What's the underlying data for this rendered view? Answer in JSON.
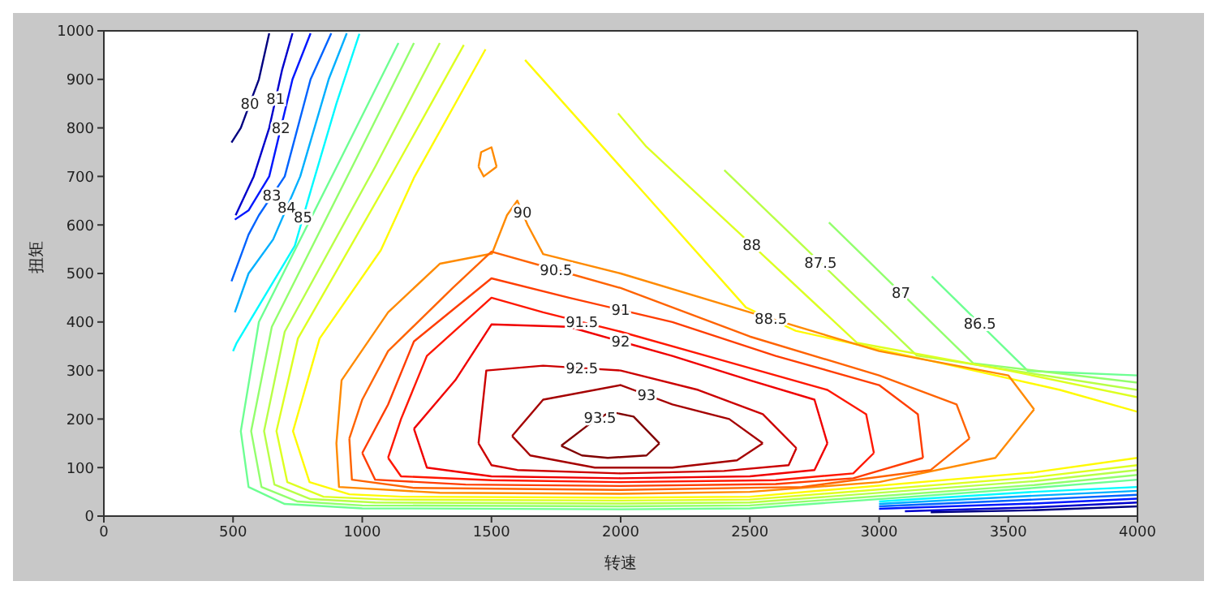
{
  "chart_data": {
    "type": "line",
    "xlabel": "转速",
    "ylabel": "扭矩",
    "xlim": [
      0,
      4000
    ],
    "xticks": [
      0,
      500,
      1000,
      1500,
      2000,
      2500,
      3000,
      3500,
      4000
    ],
    "ylim": [
      0,
      1000
    ],
    "yticks": [
      0,
      100,
      200,
      300,
      400,
      500,
      600,
      700,
      800,
      900,
      1000
    ],
    "grid": false,
    "legend": false,
    "series": [
      {
        "name": "80",
        "color": "#000080",
        "x": [
          640,
          600,
          530,
          494,
          null,
          3200,
          3600,
          4000
        ],
        "values": [
          995,
          900,
          800,
          770,
          null,
          8,
          12,
          20
        ]
      },
      {
        "name": "81",
        "color": "#0000cc",
        "x": [
          730,
          690,
          640,
          580,
          510,
          null,
          3100,
          3600,
          4000
        ],
        "values": [
          995,
          920,
          800,
          700,
          620,
          null,
          10,
          18,
          28
        ]
      },
      {
        "name": "82",
        "color": "#0017ff",
        "x": [
          800,
          730,
          640,
          560,
          507,
          null,
          3000,
          3600,
          4000
        ],
        "values": [
          995,
          900,
          700,
          630,
          611,
          null,
          15,
          26,
          36
        ]
      },
      {
        "name": "83",
        "color": "#0063ff",
        "x": [
          880,
          800,
          700,
          600,
          560,
          494,
          null,
          3000,
          3600,
          4000
        ],
        "values": [
          995,
          900,
          700,
          620,
          580,
          484,
          null,
          20,
          34,
          44
        ]
      },
      {
        "name": "84",
        "color": "#00afff",
        "x": [
          940,
          870,
          760,
          655,
          560,
          507,
          null,
          3000,
          3600,
          4000
        ],
        "values": [
          995,
          900,
          700,
          570,
          500,
          420,
          null,
          25,
          42,
          52
        ]
      },
      {
        "name": "85",
        "color": "#00faff",
        "x": [
          989,
          900,
          803,
          739,
          514,
          500,
          null,
          3000,
          3600,
          4000
        ],
        "values": [
          994,
          850,
          675,
          557,
          357,
          340,
          null,
          30,
          50,
          60
        ]
      },
      {
        "name": "86.5",
        "color": "#6dff92",
        "x": [
          3204,
          3576,
          4000,
          null,
          1140,
          920,
          600,
          530,
          560,
          700,
          1000,
          2000,
          2500,
          3600,
          4000
        ],
        "values": [
          494,
          299,
          290,
          null,
          975,
          740,
          400,
          175,
          60,
          25,
          16,
          14,
          16,
          58,
          75
        ]
      },
      {
        "name": "87",
        "color": "#92ff6d",
        "x": [
          2806,
          3364,
          4000,
          null,
          1200,
          980,
          650,
          570,
          610,
          750,
          1000,
          2000,
          2500,
          3600,
          4000
        ],
        "values": [
          605,
          315,
          275,
          null,
          975,
          740,
          390,
          175,
          60,
          30,
          22,
          20,
          22,
          64,
          85
        ]
      },
      {
        "name": "87.5",
        "color": "#b8ff47",
        "x": [
          2401,
          3146,
          4000,
          null,
          1300,
          1050,
          700,
          620,
          660,
          800,
          1050,
          2000,
          2500,
          3600,
          4000
        ],
        "values": [
          713,
          331,
          260,
          null,
          975,
          720,
          380,
          175,
          65,
          35,
          28,
          26,
          28,
          72,
          95
        ]
      },
      {
        "name": "88",
        "color": "#ddff21",
        "x": [
          1990,
          2100,
          2915,
          3500,
          4000,
          null,
          1393,
          1117,
          751,
          668,
          710,
          850,
          1091,
          2000,
          2500,
          3600,
          4000
        ],
        "values": [
          830,
          761,
          357,
          300,
          245,
          null,
          971,
          707,
          366,
          175,
          70,
          40,
          34,
          32,
          34,
          80,
          105
        ]
      },
      {
        "name": "88.5",
        "color": "#fffa00",
        "x": [
          1630,
          2100,
          2485,
          2677,
          3200,
          3700,
          4000,
          null,
          1477,
          1200,
          1072,
          835,
          732,
          796,
          950,
          1156,
          2000,
          2500,
          3600,
          4000
        ],
        "values": [
          940,
          660,
          430,
          382,
          320,
          260,
          215,
          null,
          962,
          697,
          548,
          366,
          175,
          70,
          45,
          40,
          38,
          40,
          90,
          120
        ]
      },
      {
        "name": "90",
        "color": "#ff8a00",
        "x": [
          900,
          920,
          1100,
          1300,
          1502,
          1560,
          1600,
          1640,
          1700,
          2000,
          2500,
          3000,
          3500,
          3600,
          null,
          900,
          910,
          1300,
          2000,
          2500,
          3000,
          3450,
          3600,
          null,
          1450,
          1460,
          1500,
          1520,
          null,
          1450,
          1470,
          1520
        ],
        "values": [
          150,
          280,
          420,
          520,
          541,
          620,
          650,
          600,
          540,
          500,
          420,
          340,
          290,
          220,
          null,
          150,
          60,
          48,
          46,
          50,
          70,
          120,
          220,
          null,
          720,
          750,
          760,
          720,
          null,
          720,
          700,
          720
        ]
      },
      {
        "name": "90.5",
        "color": "#ff6300",
        "x": [
          950,
          1000,
          1100,
          1350,
          1500,
          2000,
          2500,
          3000,
          3300,
          3350,
          null,
          950,
          960,
          1200,
          2000,
          2700,
          3200,
          3350
        ],
        "values": [
          160,
          240,
          340,
          470,
          545,
          470,
          370,
          290,
          230,
          160,
          null,
          160,
          75,
          58,
          54,
          60,
          95,
          160
        ]
      },
      {
        "name": "91",
        "color": "#ff3d00",
        "x": [
          1000,
          1100,
          1200,
          1500,
          1800,
          2200,
          2600,
          3000,
          3150,
          3170,
          null,
          1000,
          1050,
          1400,
          2000,
          2600,
          2900,
          3170
        ],
        "values": [
          130,
          230,
          360,
          490,
          450,
          400,
          330,
          270,
          210,
          120,
          null,
          130,
          75,
          65,
          62,
          66,
          78,
          120
        ]
      },
      {
        "name": "91.5",
        "color": "#ff1700",
        "x": [
          1100,
          1150,
          1250,
          1500,
          1700,
          2000,
          2400,
          2800,
          2950,
          2980,
          null,
          1100,
          1150,
          1500,
          2000,
          2600,
          2900,
          2980
        ],
        "values": [
          120,
          200,
          330,
          450,
          420,
          380,
          320,
          260,
          210,
          130,
          null,
          120,
          82,
          74,
          70,
          74,
          88,
          130
        ]
      },
      {
        "name": "92",
        "color": "#f00000",
        "x": [
          1200,
          1360,
          1500,
          1800,
          2200,
          2500,
          2750,
          2800,
          null,
          1200,
          1250,
          1500,
          2000,
          2500,
          2750,
          2800
        ],
        "values": [
          180,
          280,
          395,
          390,
          330,
          280,
          240,
          150,
          null,
          180,
          100,
          82,
          78,
          82,
          95,
          150
        ]
      },
      {
        "name": "92.5",
        "color": "#cc0000",
        "x": [
          1450,
          1480,
          1700,
          2000,
          2300,
          2550,
          2680,
          null,
          1450,
          1500,
          1600,
          2000,
          2400,
          2650,
          2680
        ],
        "values": [
          150,
          300,
          310,
          300,
          260,
          210,
          140,
          null,
          150,
          105,
          95,
          88,
          93,
          105,
          140
        ]
      },
      {
        "name": "93",
        "color": "#a50000",
        "x": [
          1580,
          1700,
          2000,
          2200,
          2420,
          2550,
          null,
          1580,
          1650,
          1900,
          2200,
          2450,
          2550
        ],
        "values": [
          165,
          240,
          270,
          230,
          200,
          150,
          null,
          165,
          125,
          100,
          100,
          115,
          150
        ]
      },
      {
        "name": "93.5",
        "color": "#800000",
        "x": [
          1770,
          1880,
          1960,
          2050,
          2150,
          null,
          1770,
          1850,
          1950,
          2100,
          2150
        ],
        "values": [
          145,
          190,
          215,
          205,
          150,
          null,
          145,
          125,
          120,
          125,
          150
        ]
      }
    ]
  }
}
